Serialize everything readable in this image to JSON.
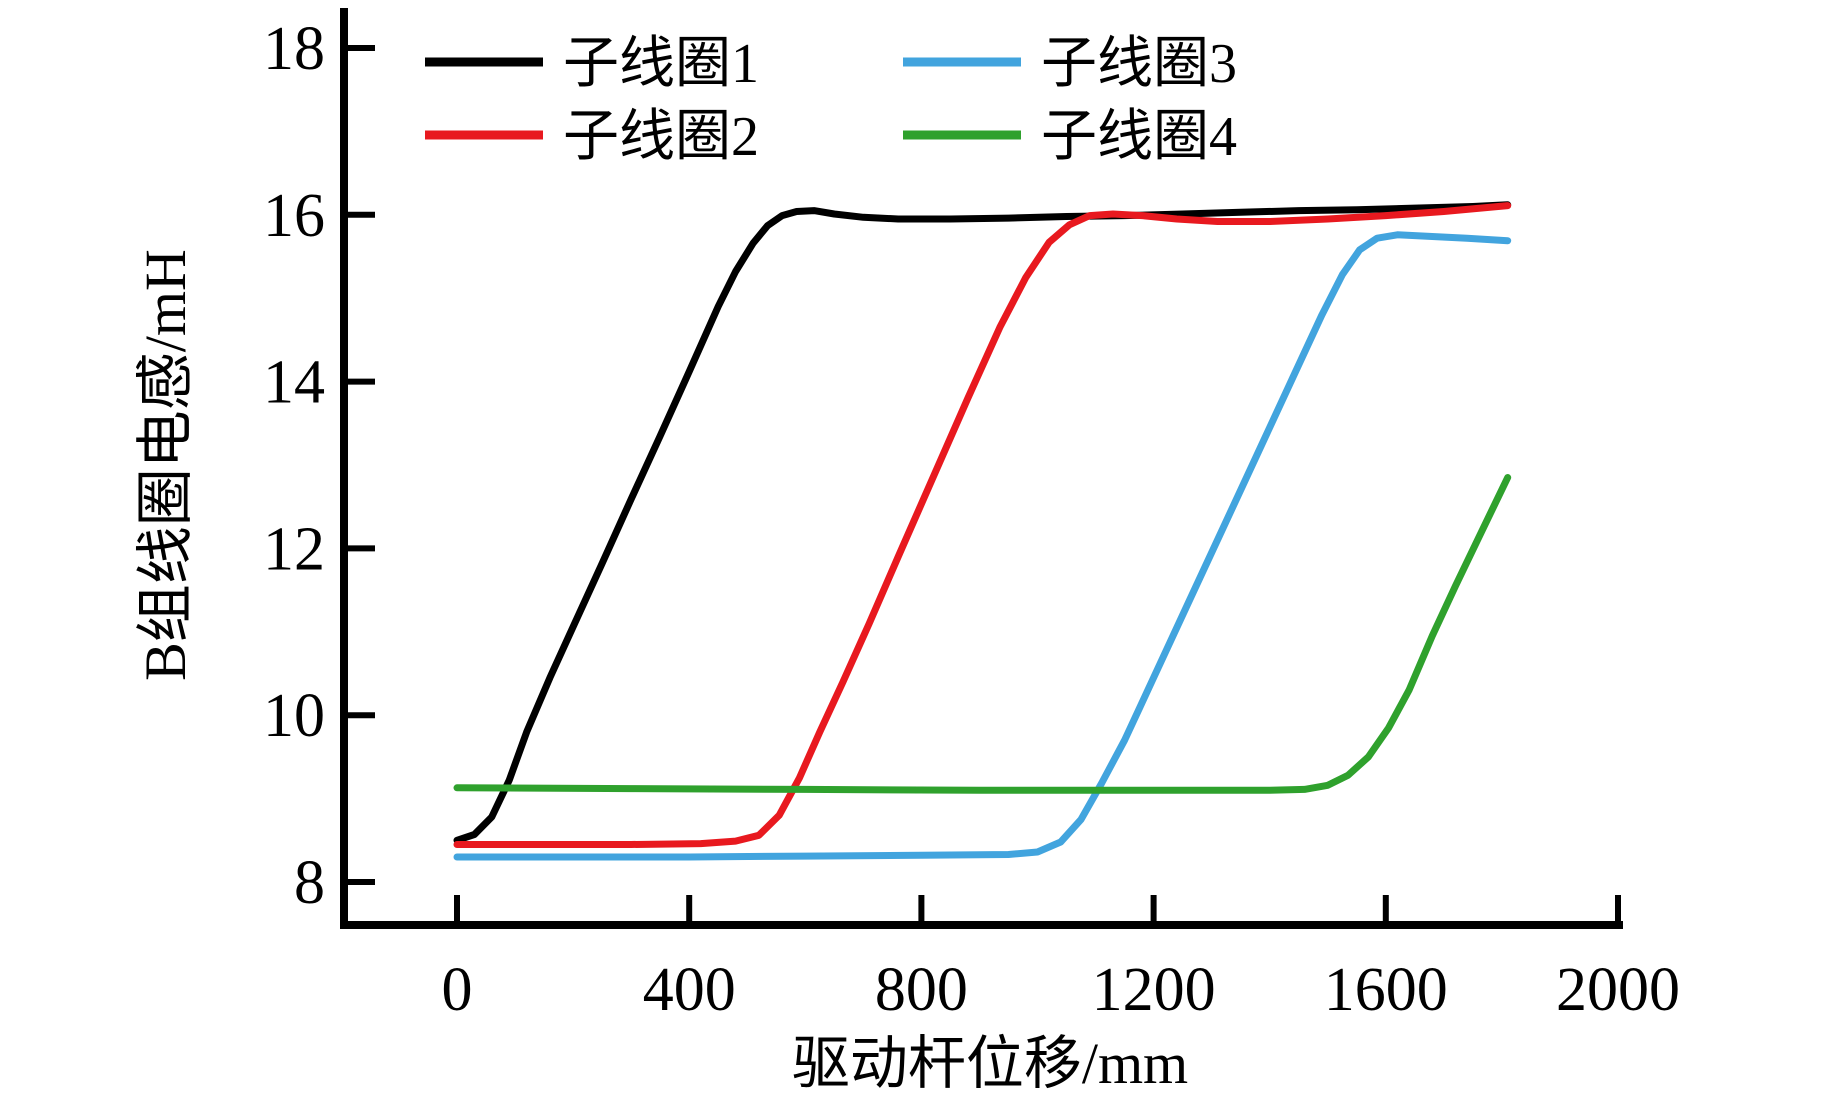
{
  "chart_data": {
    "type": "line",
    "title": "",
    "xlabel": "驱动杆位移/mm",
    "ylabel": "B组线圈电感/mH",
    "xlim": [
      0,
      2000
    ],
    "ylim": [
      8,
      18
    ],
    "x_ticks": [
      0,
      400,
      800,
      1200,
      1600,
      2000
    ],
    "y_ticks": [
      8,
      10,
      12,
      14,
      16,
      18
    ],
    "grid": false,
    "legend_position": "top-inside-two-columns",
    "axis_color": "#000000",
    "series": [
      {
        "name": "子线圈1",
        "color": "#000000",
        "points": [
          [
            0,
            8.5
          ],
          [
            30,
            8.57
          ],
          [
            60,
            8.78
          ],
          [
            90,
            9.22
          ],
          [
            120,
            9.8
          ],
          [
            160,
            10.45
          ],
          [
            200,
            11.06
          ],
          [
            250,
            11.82
          ],
          [
            300,
            12.59
          ],
          [
            350,
            13.35
          ],
          [
            400,
            14.12
          ],
          [
            450,
            14.9
          ],
          [
            480,
            15.32
          ],
          [
            510,
            15.66
          ],
          [
            535,
            15.87
          ],
          [
            560,
            15.99
          ],
          [
            585,
            16.04
          ],
          [
            615,
            16.05
          ],
          [
            650,
            16.01
          ],
          [
            700,
            15.97
          ],
          [
            760,
            15.95
          ],
          [
            850,
            15.95
          ],
          [
            950,
            15.96
          ],
          [
            1050,
            15.98
          ],
          [
            1150,
            15.99
          ],
          [
            1250,
            16.01
          ],
          [
            1350,
            16.03
          ],
          [
            1450,
            16.05
          ],
          [
            1550,
            16.06
          ],
          [
            1650,
            16.08
          ],
          [
            1750,
            16.1
          ],
          [
            1810,
            16.12
          ]
        ]
      },
      {
        "name": "子线圈2",
        "color": "#e8191f",
        "points": [
          [
            0,
            8.45
          ],
          [
            150,
            8.45
          ],
          [
            300,
            8.45
          ],
          [
            420,
            8.46
          ],
          [
            480,
            8.49
          ],
          [
            520,
            8.56
          ],
          [
            555,
            8.8
          ],
          [
            590,
            9.25
          ],
          [
            625,
            9.8
          ],
          [
            665,
            10.4
          ],
          [
            710,
            11.1
          ],
          [
            760,
            11.9
          ],
          [
            820,
            12.85
          ],
          [
            880,
            13.8
          ],
          [
            935,
            14.65
          ],
          [
            980,
            15.25
          ],
          [
            1020,
            15.67
          ],
          [
            1055,
            15.88
          ],
          [
            1090,
            15.99
          ],
          [
            1130,
            16.01
          ],
          [
            1180,
            15.99
          ],
          [
            1240,
            15.95
          ],
          [
            1310,
            15.92
          ],
          [
            1400,
            15.92
          ],
          [
            1500,
            15.95
          ],
          [
            1600,
            15.99
          ],
          [
            1700,
            16.04
          ],
          [
            1810,
            16.11
          ]
        ]
      },
      {
        "name": "子线圈3",
        "color": "#42a4de",
        "points": [
          [
            0,
            8.3
          ],
          [
            200,
            8.3
          ],
          [
            400,
            8.3
          ],
          [
            600,
            8.31
          ],
          [
            800,
            8.32
          ],
          [
            950,
            8.33
          ],
          [
            1000,
            8.36
          ],
          [
            1040,
            8.48
          ],
          [
            1075,
            8.75
          ],
          [
            1110,
            9.18
          ],
          [
            1150,
            9.7
          ],
          [
            1200,
            10.45
          ],
          [
            1260,
            11.35
          ],
          [
            1320,
            12.25
          ],
          [
            1380,
            13.15
          ],
          [
            1440,
            14.05
          ],
          [
            1490,
            14.8
          ],
          [
            1525,
            15.28
          ],
          [
            1555,
            15.58
          ],
          [
            1585,
            15.72
          ],
          [
            1620,
            15.76
          ],
          [
            1680,
            15.74
          ],
          [
            1740,
            15.72
          ],
          [
            1810,
            15.69
          ]
        ]
      },
      {
        "name": "子线圈4",
        "color": "#2fa12d",
        "points": [
          [
            0,
            9.13
          ],
          [
            300,
            9.12
          ],
          [
            600,
            9.11
          ],
          [
            900,
            9.1
          ],
          [
            1200,
            9.1
          ],
          [
            1400,
            9.1
          ],
          [
            1460,
            9.11
          ],
          [
            1500,
            9.16
          ],
          [
            1535,
            9.28
          ],
          [
            1570,
            9.5
          ],
          [
            1605,
            9.85
          ],
          [
            1640,
            10.3
          ],
          [
            1680,
            10.95
          ],
          [
            1720,
            11.55
          ],
          [
            1760,
            12.13
          ],
          [
            1810,
            12.85
          ]
        ]
      }
    ]
  }
}
